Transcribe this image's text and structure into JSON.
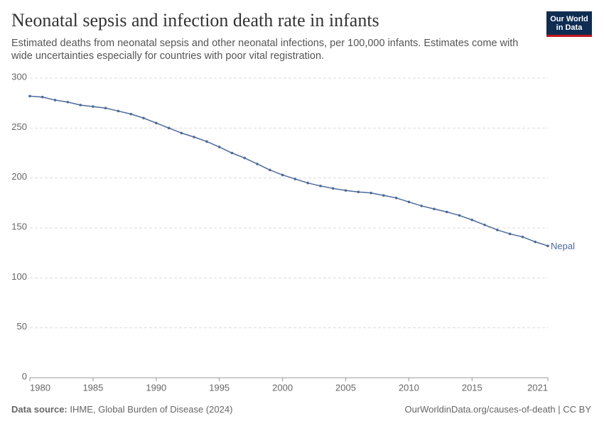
{
  "chart_data": {
    "type": "line",
    "title": "Neonatal sepsis and infection death rate in infants",
    "subtitle": "Estimated deaths from neonatal sepsis and other neonatal infections, per 100,000 infants. Estimates come with wide uncertainties especially for countries with poor vital registration.",
    "x": [
      1980,
      1981,
      1982,
      1983,
      1984,
      1985,
      1986,
      1987,
      1988,
      1989,
      1990,
      1991,
      1992,
      1993,
      1994,
      1995,
      1996,
      1997,
      1998,
      1999,
      2000,
      2001,
      2002,
      2003,
      2004,
      2005,
      2006,
      2007,
      2008,
      2009,
      2010,
      2011,
      2012,
      2013,
      2014,
      2015,
      2016,
      2017,
      2018,
      2019,
      2020,
      2021
    ],
    "series": [
      {
        "name": "Nepal",
        "color": "#4c6a9c",
        "values": [
          282,
          281,
          278,
          276,
          273,
          271.5,
          270,
          267,
          264,
          260,
          255,
          250,
          245,
          241,
          236.5,
          231,
          225,
          220,
          214,
          208,
          203,
          199,
          195,
          192,
          189.5,
          187.5,
          186,
          185,
          182.5,
          180,
          176,
          172,
          169,
          166,
          162.5,
          158,
          153,
          148,
          144,
          141,
          136,
          132
        ]
      }
    ],
    "xlim": [
      1980,
      2021
    ],
    "xticks": [
      1980,
      1985,
      1990,
      1995,
      2000,
      2005,
      2010,
      2015,
      2021
    ],
    "ylim": [
      0,
      300
    ],
    "yticks": [
      0,
      50,
      100,
      150,
      200,
      250,
      300
    ],
    "grid": true
  },
  "logo": [
    "Our World",
    "in Data"
  ],
  "source_label": "Data source:",
  "source": "IHME, Global Burden of Disease (2024)",
  "url": "OurWorldinData.org/causes-of-death | CC BY"
}
